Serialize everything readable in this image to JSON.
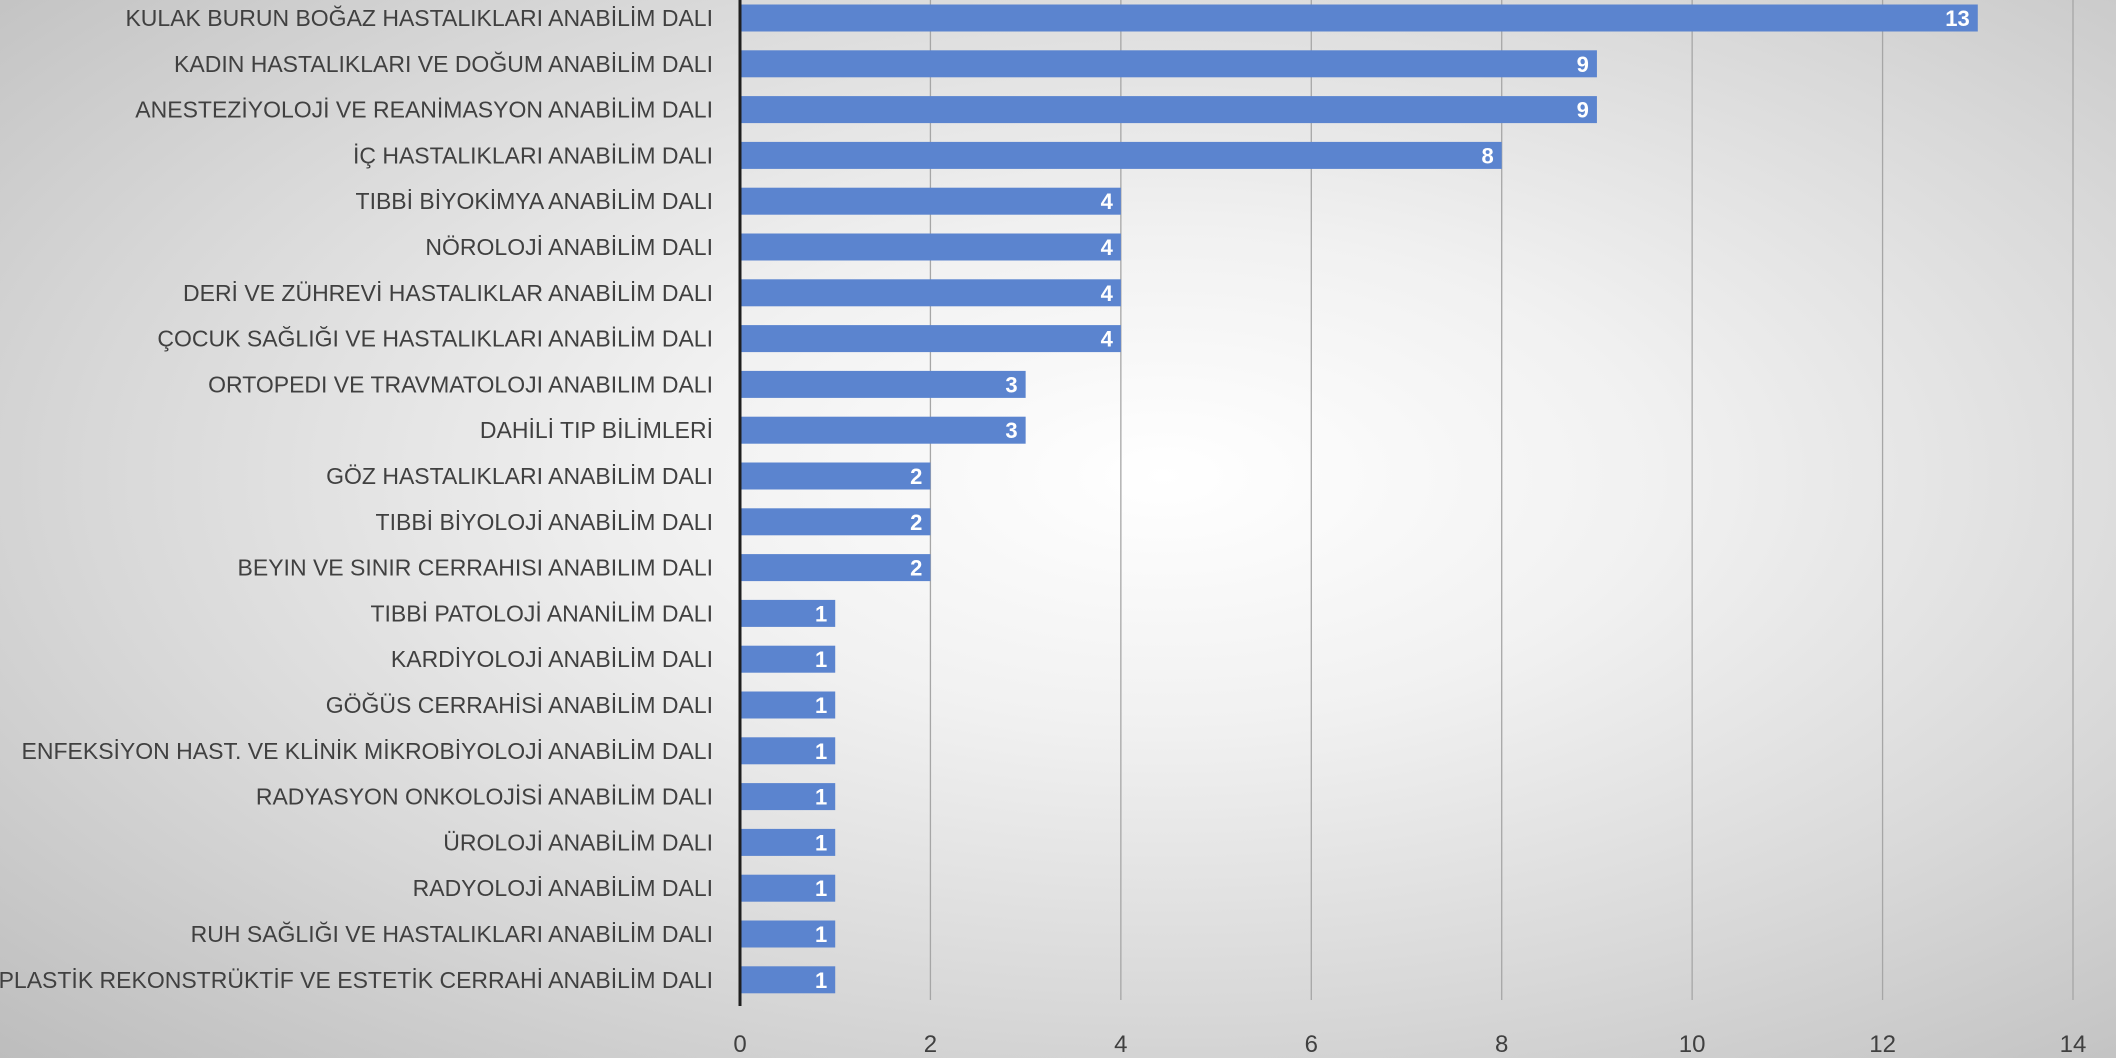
{
  "chart_data": {
    "type": "bar",
    "orientation": "horizontal",
    "title": "",
    "xlabel": "",
    "ylabel": "",
    "categories": [
      "KULAK BURUN BOĞAZ HASTALIKLARI ANABİLİM DALI",
      "KADIN HASTALIKLARI VE DOĞUM ANABİLİM DALI",
      "ANESTEZİYOLOJİ VE REANİMASYON ANABİLİM DALI",
      "İÇ HASTALIKLARI ANABİLİM DALI",
      "TIBBİ BİYOKİMYA ANABİLİM DALI",
      "NÖROLOJİ ANABİLİM DALI",
      "DERİ VE ZÜHREVİ HASTALIKLAR ANABİLİM DALI",
      "ÇOCUK SAĞLIĞI VE HASTALIKLARI ANABİLİM DALI",
      "ORTOPEDI VE TRAVMATOLOJI ANABILIM DALI",
      "DAHİLİ TIP BİLİMLERİ",
      "GÖZ HASTALIKLARI ANABİLİM DALI",
      "TIBBİ BİYOLOJİ ANABİLİM DALI",
      "BEYIN VE SINIR CERRAHISI ANABILIM DALI",
      "TIBBİ PATOLOJİ ANANİLİM DALI",
      "KARDİYOLOJİ ANABİLİM DALI",
      "GÖĞÜS CERRAHİSİ ANABİLİM DALI",
      "ENFEKSİYON HAST. VE KLİNİK MİKROBİYOLOJİ ANABİLİM DALI",
      "RADYASYON ONKOLOJİSİ ANABİLİM DALI",
      "ÜROLOJİ ANABİLİM DALI",
      "RADYOLOJİ ANABİLİM DALI",
      "RUH SAĞLIĞI VE HASTALIKLARI ANABİLİM DALI",
      "PLASTİK REKONSTRÜKTİF VE ESTETİK CERRAHİ ANABİLİM DALI"
    ],
    "values": [
      13,
      9,
      9,
      8,
      4,
      4,
      4,
      4,
      3,
      3,
      2,
      2,
      2,
      1,
      1,
      1,
      1,
      1,
      1,
      1,
      1,
      1
    ],
    "xlim": [
      0,
      14
    ],
    "xticks": [
      0,
      2,
      4,
      6,
      8,
      10,
      12,
      14
    ],
    "grid": "vertical",
    "legend": "none",
    "data_labels": true,
    "bar_color": "#5b84cf",
    "grid_color": "#a6a6a6",
    "axis_color": "#1f1f1f"
  }
}
